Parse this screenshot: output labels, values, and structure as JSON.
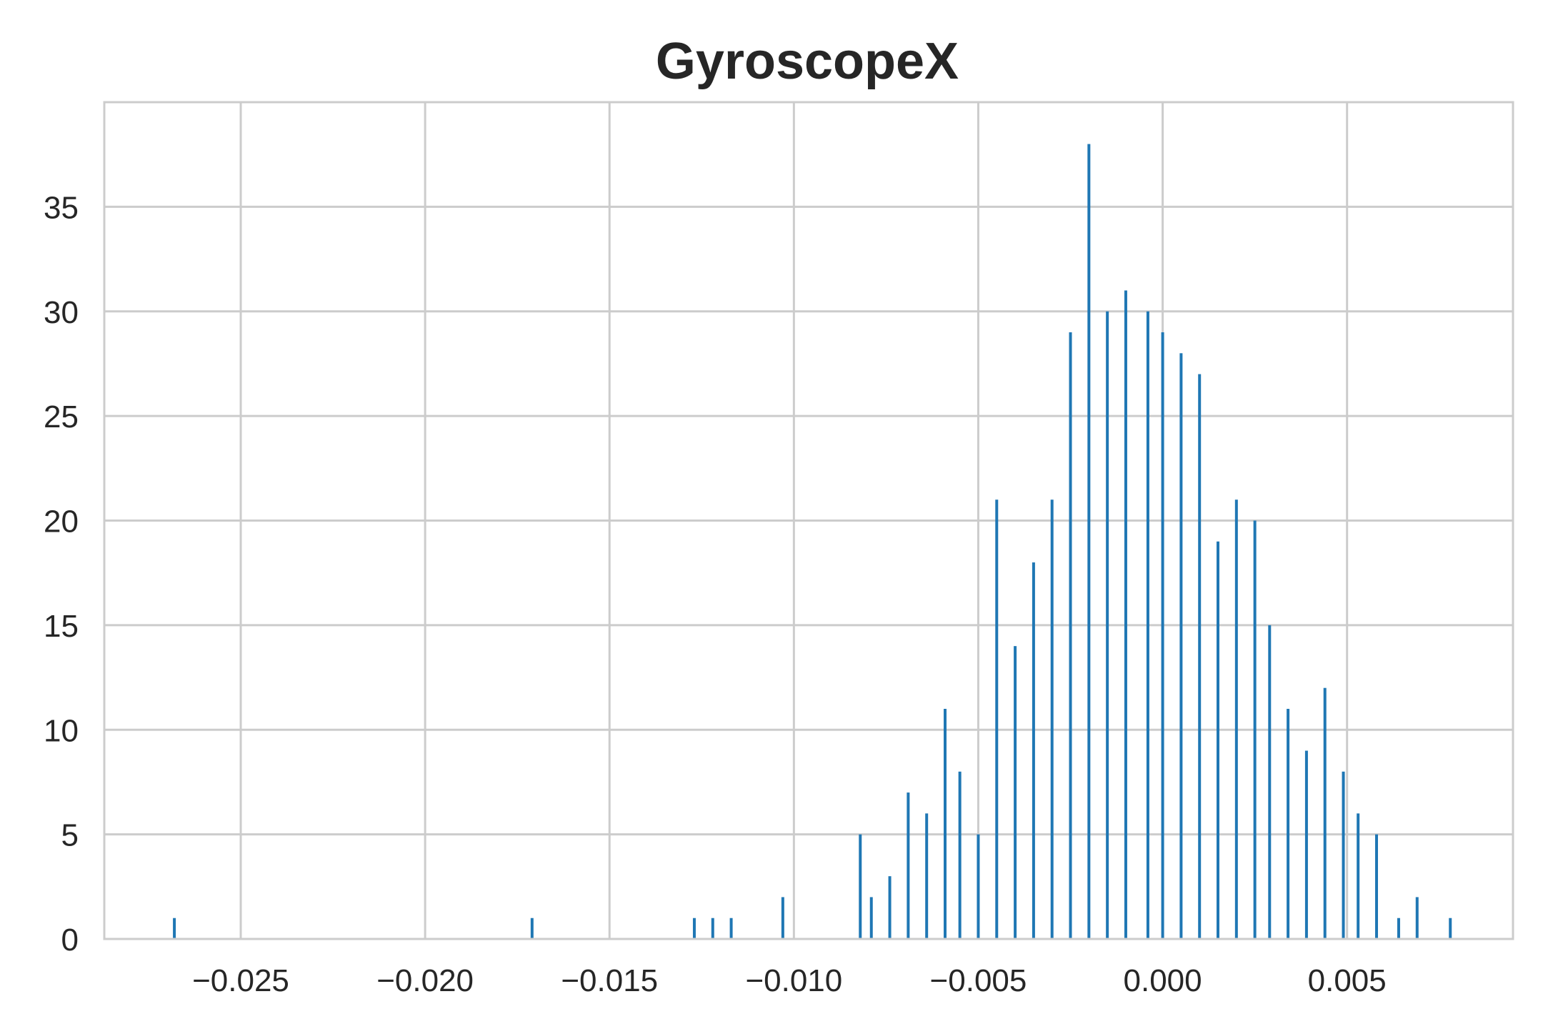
{
  "chart_data": {
    "type": "bar",
    "title": "GyroscopeX",
    "xlabel": "",
    "ylabel": "",
    "xlim": [
      -0.0287,
      0.0095
    ],
    "ylim": [
      0,
      40
    ],
    "x_ticks": [
      -0.025,
      -0.02,
      -0.015,
      -0.01,
      -0.005,
      0.0,
      0.005
    ],
    "x_tick_labels": [
      "−0.025",
      "−0.020",
      "−0.015",
      "−0.010",
      "−0.005",
      "0.000",
      "0.005"
    ],
    "y_ticks": [
      0,
      5,
      10,
      15,
      20,
      25,
      30,
      35
    ],
    "y_tick_labels": [
      "0",
      "5",
      "10",
      "15",
      "20",
      "25",
      "30",
      "35"
    ],
    "grid": true,
    "bar_color": "#1f77b4",
    "bars": [
      {
        "x": -0.0268,
        "count": 1
      },
      {
        "x": -0.0171,
        "count": 1
      },
      {
        "x": -0.0127,
        "count": 1
      },
      {
        "x": -0.0122,
        "count": 1
      },
      {
        "x": -0.0117,
        "count": 1
      },
      {
        "x": -0.0103,
        "count": 2
      },
      {
        "x": -0.0082,
        "count": 5
      },
      {
        "x": -0.0079,
        "count": 2
      },
      {
        "x": -0.0074,
        "count": 3
      },
      {
        "x": -0.0069,
        "count": 7
      },
      {
        "x": -0.0064,
        "count": 6
      },
      {
        "x": -0.0059,
        "count": 11
      },
      {
        "x": -0.0055,
        "count": 8
      },
      {
        "x": -0.005,
        "count": 5
      },
      {
        "x": -0.0045,
        "count": 21
      },
      {
        "x": -0.004,
        "count": 14
      },
      {
        "x": -0.0035,
        "count": 18
      },
      {
        "x": -0.003,
        "count": 21
      },
      {
        "x": -0.0025,
        "count": 29
      },
      {
        "x": -0.002,
        "count": 38
      },
      {
        "x": -0.0015,
        "count": 30
      },
      {
        "x": -0.001,
        "count": 31
      },
      {
        "x": -0.0004,
        "count": 30
      },
      {
        "x": 0.0,
        "count": 29
      },
      {
        "x": 0.0005,
        "count": 28
      },
      {
        "x": 0.001,
        "count": 27
      },
      {
        "x": 0.0015,
        "count": 19
      },
      {
        "x": 0.002,
        "count": 21
      },
      {
        "x": 0.0025,
        "count": 20
      },
      {
        "x": 0.0029,
        "count": 15
      },
      {
        "x": 0.0034,
        "count": 11
      },
      {
        "x": 0.0039,
        "count": 9
      },
      {
        "x": 0.0044,
        "count": 12
      },
      {
        "x": 0.0049,
        "count": 8
      },
      {
        "x": 0.0053,
        "count": 6
      },
      {
        "x": 0.0058,
        "count": 5
      },
      {
        "x": 0.0064,
        "count": 1
      },
      {
        "x": 0.0069,
        "count": 2
      },
      {
        "x": 0.0078,
        "count": 1
      }
    ]
  }
}
